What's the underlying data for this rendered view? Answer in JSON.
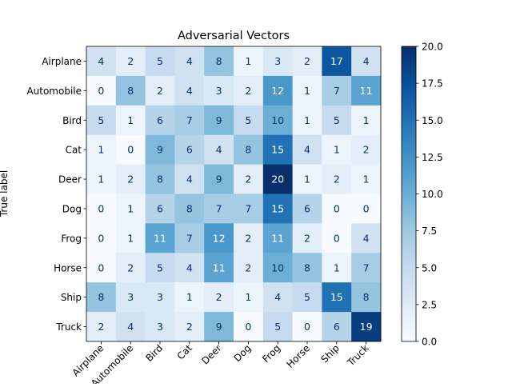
{
  "chart_data": {
    "type": "heatmap",
    "title": "Adversarial Vectors",
    "ylabel": "True label",
    "xlabel": "",
    "rows": [
      "Airplane",
      "Automobile",
      "Bird",
      "Cat",
      "Deer",
      "Dog",
      "Frog",
      "Horse",
      "Ship",
      "Truck"
    ],
    "columns": [
      "Airplane",
      "Automobile",
      "Bird",
      "Cat",
      "Deer",
      "Dog",
      "Frog",
      "Horse",
      "Ship",
      "Truck"
    ],
    "values": [
      [
        4,
        2,
        5,
        4,
        8,
        1,
        3,
        2,
        17,
        4
      ],
      [
        0,
        8,
        2,
        4,
        3,
        2,
        12,
        1,
        7,
        11
      ],
      [
        5,
        1,
        6,
        7,
        9,
        5,
        10,
        1,
        5,
        1
      ],
      [
        1,
        0,
        9,
        6,
        4,
        8,
        15,
        4,
        1,
        2
      ],
      [
        1,
        2,
        8,
        4,
        9,
        2,
        20,
        1,
        2,
        1
      ],
      [
        0,
        1,
        6,
        8,
        7,
        7,
        15,
        6,
        0,
        0
      ],
      [
        0,
        1,
        11,
        7,
        12,
        2,
        11,
        2,
        0,
        4
      ],
      [
        0,
        2,
        5,
        4,
        11,
        2,
        10,
        8,
        1,
        7
      ],
      [
        8,
        3,
        3,
        1,
        2,
        1,
        4,
        5,
        15,
        8
      ],
      [
        2,
        4,
        3,
        2,
        9,
        0,
        5,
        0,
        6,
        19
      ]
    ],
    "colorscale": "Blues",
    "vmin": 0,
    "vmax": 20,
    "colorbar_ticks": [
      "0.0",
      "2.5",
      "5.0",
      "7.5",
      "10.0",
      "12.5",
      "15.0",
      "17.5",
      "20.0"
    ]
  }
}
